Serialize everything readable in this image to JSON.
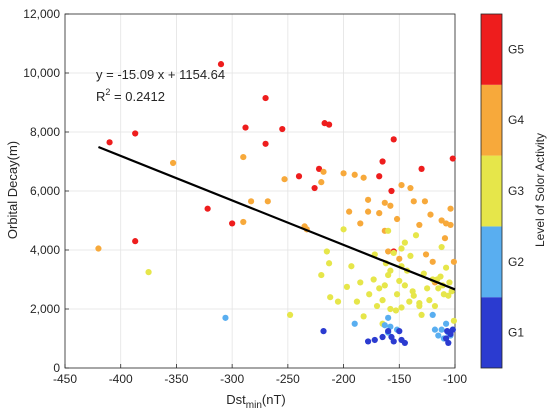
{
  "chart_data": {
    "type": "scatter",
    "xlabel": "Dst",
    "xlabel_sub": "min",
    "xlabel_unit": "(nT)",
    "ylabel": "Orbital Decay(m)",
    "xlim": [
      -450,
      -100
    ],
    "ylim": [
      0,
      12000
    ],
    "x_ticks": [
      -450,
      -400,
      -350,
      -300,
      -250,
      -200,
      -150,
      -100
    ],
    "y_ticks": [
      0,
      2000,
      4000,
      6000,
      8000,
      10000,
      12000
    ],
    "x_tick_labels": [
      "-450",
      "-400",
      "-350",
      "-300",
      "-250",
      "-200",
      "-150",
      "-100"
    ],
    "y_tick_labels": [
      "0",
      "2,000",
      "4,000",
      "6,000",
      "8,000",
      "10,000",
      "12,000"
    ],
    "grid": true,
    "fit_line": {
      "slope": -15.09,
      "intercept": 1154.64,
      "x_range": [
        -420,
        -100
      ]
    },
    "equation_text": "y = -15.09 x + 1154.64",
    "r2_label": "R",
    "r2_sup": "2",
    "r2_value": " = 0.2412",
    "colorbar": {
      "label": "Level of Solor Activity",
      "levels": [
        {
          "name": "G1",
          "color": "#2b3bd0"
        },
        {
          "name": "G2",
          "color": "#59aef0"
        },
        {
          "name": "G3",
          "color": "#e6e64a"
        },
        {
          "name": "G4",
          "color": "#f7a93b"
        },
        {
          "name": "G5",
          "color": "#ee1d1d"
        }
      ]
    },
    "series": [
      {
        "level": "G5",
        "points": [
          [
            -310,
            10300
          ],
          [
            -270,
            9150
          ],
          [
            -410,
            7650
          ],
          [
            -387,
            7950
          ],
          [
            -288,
            8150
          ],
          [
            -255,
            8100
          ],
          [
            -270,
            7600
          ],
          [
            -213,
            8250
          ],
          [
            -217,
            8300
          ],
          [
            -165,
            7000
          ],
          [
            -155,
            7750
          ],
          [
            -168,
            6500
          ],
          [
            -222,
            6750
          ],
          [
            -240,
            6500
          ],
          [
            -226,
            6100
          ],
          [
            -157,
            6000
          ],
          [
            -130,
            6750
          ],
          [
            -102,
            7100
          ],
          [
            -322,
            5400
          ],
          [
            -300,
            4900
          ],
          [
            -387,
            4300
          ],
          [
            -155,
            3950
          ]
        ]
      },
      {
        "level": "G4",
        "points": [
          [
            -420,
            4050
          ],
          [
            -353,
            6950
          ],
          [
            -290,
            7150
          ],
          [
            -283,
            5650
          ],
          [
            -290,
            4950
          ],
          [
            -268,
            5650
          ],
          [
            -253,
            6400
          ],
          [
            -235,
            4800
          ],
          [
            -233,
            4700
          ],
          [
            -220,
            6300
          ],
          [
            -218,
            6650
          ],
          [
            -200,
            6600
          ],
          [
            -190,
            6550
          ],
          [
            -182,
            6450
          ],
          [
            -178,
            5700
          ],
          [
            -178,
            5300
          ],
          [
            -168,
            5250
          ],
          [
            -163,
            5600
          ],
          [
            -158,
            5500
          ],
          [
            -148,
            6200
          ],
          [
            -140,
            6100
          ],
          [
            -137,
            5650
          ],
          [
            -127,
            5650
          ],
          [
            -122,
            5200
          ],
          [
            -152,
            5050
          ],
          [
            -132,
            4850
          ],
          [
            -126,
            3850
          ],
          [
            -112,
            5000
          ],
          [
            -104,
            5400
          ],
          [
            -104,
            4850
          ],
          [
            -195,
            5300
          ],
          [
            -163,
            4650
          ],
          [
            -185,
            4900
          ],
          [
            -160,
            3950
          ],
          [
            -150,
            3700
          ],
          [
            -120,
            3600
          ],
          [
            -109,
            4400
          ],
          [
            -101,
            3600
          ],
          [
            -118,
            2900
          ],
          [
            -108,
            4900
          ]
        ]
      },
      {
        "level": "G3",
        "points": [
          [
            -375,
            3250
          ],
          [
            -248,
            1800
          ],
          [
            -220,
            3150
          ],
          [
            -215,
            3950
          ],
          [
            -213,
            3550
          ],
          [
            -205,
            2250
          ],
          [
            -212,
            2400
          ],
          [
            -197,
            2750
          ],
          [
            -193,
            3450
          ],
          [
            -188,
            2250
          ],
          [
            -182,
            1750
          ],
          [
            -177,
            2500
          ],
          [
            -173,
            3000
          ],
          [
            -172,
            3850
          ],
          [
            -168,
            2700
          ],
          [
            -165,
            2300
          ],
          [
            -163,
            2800
          ],
          [
            -162,
            3550
          ],
          [
            -160,
            4650
          ],
          [
            -158,
            3300
          ],
          [
            -155,
            3900
          ],
          [
            -152,
            2500
          ],
          [
            -150,
            2950
          ],
          [
            -148,
            4050
          ],
          [
            -145,
            2800
          ],
          [
            -143,
            3300
          ],
          [
            -141,
            2250
          ],
          [
            -140,
            3800
          ],
          [
            -138,
            2600
          ],
          [
            -135,
            4500
          ],
          [
            -132,
            2100
          ],
          [
            -130,
            1800
          ],
          [
            -128,
            3200
          ],
          [
            -125,
            2700
          ],
          [
            -123,
            2300
          ],
          [
            -120,
            3000
          ],
          [
            -118,
            2100
          ],
          [
            -115,
            2700
          ],
          [
            -113,
            3100
          ],
          [
            -110,
            2500
          ],
          [
            -108,
            3400
          ],
          [
            -105,
            2900
          ],
          [
            -103,
            2600
          ],
          [
            -101,
            1600
          ],
          [
            -170,
            2100
          ],
          [
            -158,
            2000
          ],
          [
            -153,
            1950
          ],
          [
            -148,
            2050
          ],
          [
            -137,
            2450
          ],
          [
            -132,
            2200
          ],
          [
            -116,
            3000
          ],
          [
            -111,
            2800
          ],
          [
            -106,
            2450
          ],
          [
            -165,
            1500
          ],
          [
            -185,
            2900
          ],
          [
            -160,
            3150
          ],
          [
            -148,
            3450
          ],
          [
            -200,
            4700
          ],
          [
            -145,
            4250
          ],
          [
            -112,
            4100
          ]
        ]
      },
      {
        "level": "G2",
        "points": [
          [
            -306,
            1700
          ],
          [
            -190,
            1500
          ],
          [
            -160,
            1700
          ],
          [
            -158,
            1400
          ],
          [
            -160,
            1200
          ],
          [
            -152,
            1300
          ],
          [
            -120,
            1800
          ],
          [
            -118,
            1300
          ],
          [
            -115,
            1100
          ],
          [
            -112,
            1300
          ],
          [
            -108,
            1500
          ],
          [
            -106,
            1200
          ],
          [
            -104,
            1100
          ],
          [
            -102,
            1300
          ],
          [
            -110,
            1000
          ],
          [
            -163,
            1450
          ]
        ]
      },
      {
        "level": "G1",
        "points": [
          [
            -218,
            1250
          ],
          [
            -178,
            900
          ],
          [
            -172,
            950
          ],
          [
            -165,
            1050
          ],
          [
            -160,
            1250
          ],
          [
            -157,
            1050
          ],
          [
            -155,
            900
          ],
          [
            -150,
            1250
          ],
          [
            -148,
            950
          ],
          [
            -145,
            850
          ],
          [
            -108,
            1000
          ],
          [
            -106,
            850
          ],
          [
            -104,
            1150
          ],
          [
            -102,
            1300
          ],
          [
            -107,
            1250
          ]
        ]
      }
    ]
  }
}
